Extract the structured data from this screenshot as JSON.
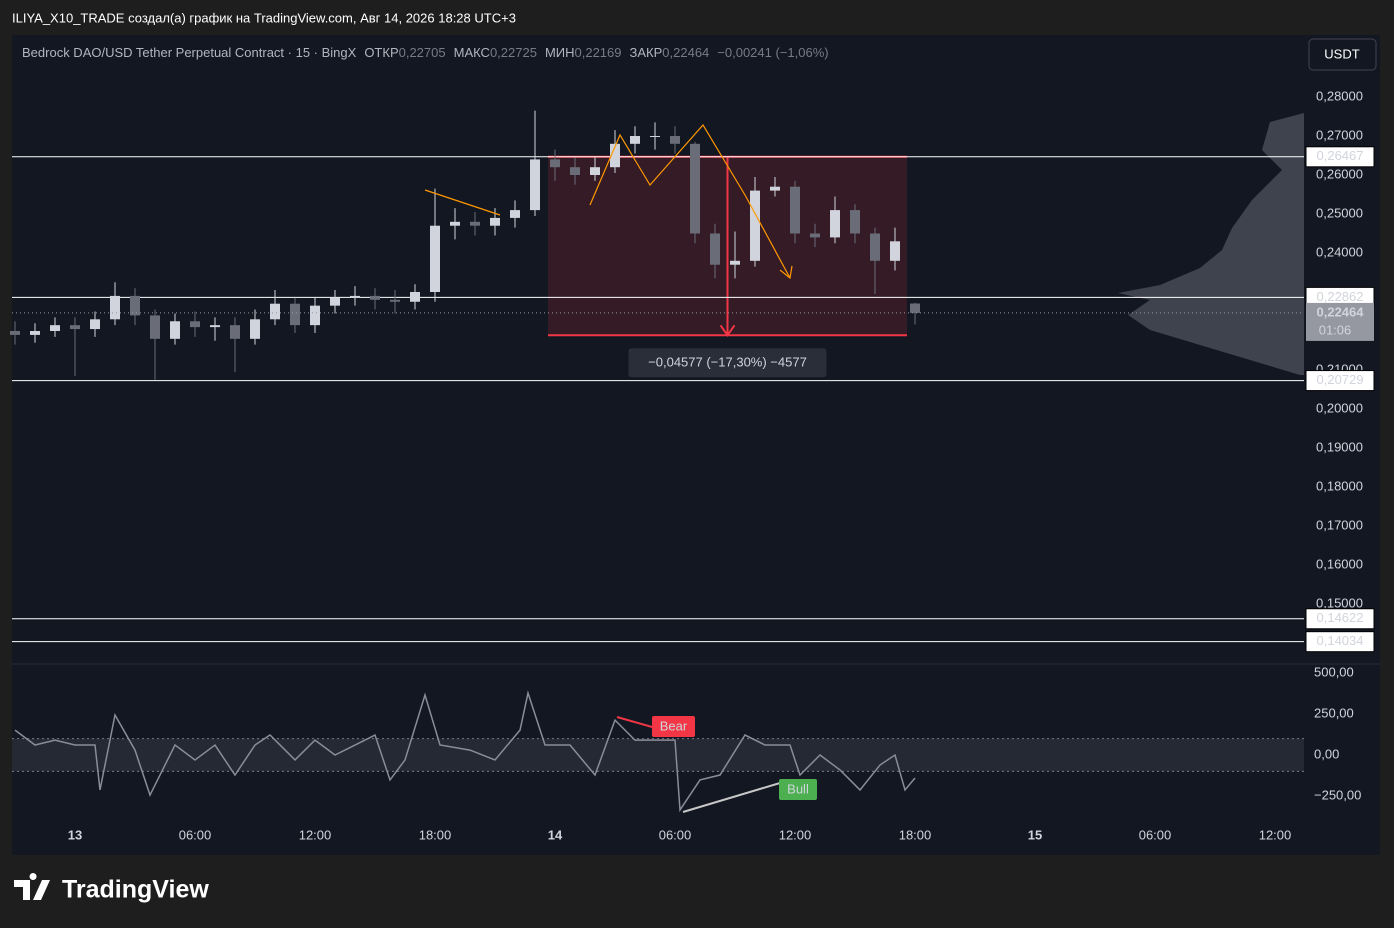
{
  "header": {
    "author": "ILIYA_X10_TRADE создал(а) график на TradingView.com, Авг 14, 2026 18:28 UTC+3"
  },
  "footer": {
    "brand": "TradingView"
  },
  "chart_data": [
    {
      "type": "candlestick",
      "legend": {
        "symbol": "Bedrock DAO/USD Tether Perpetual Contract · 15 · BingX",
        "items": [
          {
            "name": "ОТКР",
            "value": "0,22705"
          },
          {
            "name": "МАКС",
            "value": "0,22725"
          },
          {
            "name": "МИН",
            "value": "0,22169"
          },
          {
            "name": "ЗАКР",
            "value": "0,22464"
          }
        ],
        "change": "−0,00241 (−1,06%)"
      },
      "currency": "USDT",
      "x": [
        -3,
        -2,
        -1,
        0,
        1,
        2,
        3,
        4,
        5,
        6,
        7,
        8,
        9,
        10,
        11,
        12,
        13,
        14,
        15,
        16,
        17,
        18,
        19,
        20,
        21,
        22,
        23,
        24,
        25,
        26,
        27,
        28,
        29,
        30,
        31,
        32,
        33,
        34,
        35,
        36,
        37,
        38,
        39,
        40,
        41,
        42
      ],
      "open": [
        0.22,
        0.219,
        0.22,
        0.2215,
        0.2205,
        0.223,
        0.229,
        0.224,
        0.218,
        0.2225,
        0.221,
        0.2215,
        0.218,
        0.223,
        0.227,
        0.2215,
        0.2265,
        0.2285,
        0.229,
        0.228,
        0.2275,
        0.23,
        0.247,
        0.248,
        0.247,
        0.249,
        0.251,
        0.264,
        0.262,
        0.26,
        0.262,
        0.268,
        0.27,
        0.27,
        0.268,
        0.245,
        0.237,
        0.238,
        0.256,
        0.257,
        0.245,
        0.244,
        0.251,
        0.245,
        0.238,
        0.22705
      ],
      "high": [
        0.2225,
        0.222,
        0.2235,
        0.2235,
        0.225,
        0.2325,
        0.231,
        0.2255,
        0.2245,
        0.225,
        0.2235,
        0.2235,
        0.2255,
        0.2305,
        0.2285,
        0.2285,
        0.2305,
        0.2315,
        0.231,
        0.2305,
        0.232,
        0.2565,
        0.2515,
        0.2505,
        0.2515,
        0.2535,
        0.2765,
        0.2665,
        0.2645,
        0.2645,
        0.2715,
        0.2725,
        0.2735,
        0.2725,
        0.2685,
        0.2475,
        0.2455,
        0.2595,
        0.2595,
        0.2585,
        0.2475,
        0.2545,
        0.2525,
        0.2465,
        0.2465,
        0.22725
      ],
      "low": [
        0.2165,
        0.217,
        0.2185,
        0.2085,
        0.2185,
        0.2215,
        0.2215,
        0.2075,
        0.2165,
        0.2185,
        0.2175,
        0.2095,
        0.2165,
        0.2215,
        0.2195,
        0.2195,
        0.2245,
        0.2265,
        0.2255,
        0.2245,
        0.2255,
        0.2275,
        0.2435,
        0.2445,
        0.2445,
        0.2465,
        0.2495,
        0.2585,
        0.2575,
        0.2585,
        0.2605,
        0.2655,
        0.2665,
        0.2655,
        0.2425,
        0.2335,
        0.2335,
        0.2365,
        0.2545,
        0.2425,
        0.2415,
        0.2425,
        0.2425,
        0.2295,
        0.2355,
        0.22169
      ],
      "close": [
        0.219,
        0.22,
        0.2215,
        0.2205,
        0.223,
        0.229,
        0.224,
        0.218,
        0.2225,
        0.221,
        0.2215,
        0.218,
        0.223,
        0.227,
        0.2215,
        0.2265,
        0.2285,
        0.229,
        0.228,
        0.2275,
        0.23,
        0.247,
        0.248,
        0.247,
        0.249,
        0.251,
        0.264,
        0.262,
        0.26,
        0.262,
        0.268,
        0.27,
        0.27,
        0.268,
        0.245,
        0.237,
        0.238,
        0.256,
        0.257,
        0.245,
        0.244,
        0.251,
        0.245,
        0.238,
        0.243,
        0.22464
      ],
      "up_color": "#d1d4dc",
      "down_color": "#6a6d78",
      "xlim": [
        -3.15,
        61.45
      ],
      "xticks": [
        {
          "value": 0,
          "label": "13"
        },
        {
          "value": 6,
          "label": "06:00"
        },
        {
          "value": 12,
          "label": "12:00"
        },
        {
          "value": 18,
          "label": "18:00"
        },
        {
          "value": 24,
          "label": "14"
        },
        {
          "value": 30,
          "label": "06:00"
        },
        {
          "value": 36,
          "label": "12:00"
        },
        {
          "value": 42,
          "label": "18:00"
        },
        {
          "value": 48,
          "label": "15"
        },
        {
          "value": 54,
          "label": "06:00"
        },
        {
          "value": 60,
          "label": "12:00"
        }
      ],
      "ylim": [
        0.13513,
        0.2959
      ],
      "yticks": [
        {
          "value": 0.15,
          "label": "0,15000"
        },
        {
          "value": 0.16,
          "label": "0,16000"
        },
        {
          "value": 0.17,
          "label": "0,17000"
        },
        {
          "value": 0.18,
          "label": "0,18000"
        },
        {
          "value": 0.19,
          "label": "0,19000"
        },
        {
          "value": 0.2,
          "label": "0,20000"
        },
        {
          "value": 0.21,
          "label": "0,21000"
        },
        {
          "value": 0.24,
          "label": "0,24000"
        },
        {
          "value": 0.25,
          "label": "0,25000"
        },
        {
          "value": 0.26,
          "label": "0,26000"
        },
        {
          "value": 0.27,
          "label": "0,27000"
        },
        {
          "value": 0.28,
          "label": "0,28000"
        }
      ],
      "levels": [
        {
          "value": 0.26467,
          "label": "0,26467"
        },
        {
          "value": 0.22862,
          "label": "0,22862"
        },
        {
          "value": 0.20729,
          "label": "0,20729"
        },
        {
          "value": 0.14622,
          "label": "0,14622"
        },
        {
          "value": 0.14034,
          "label": "0,14034"
        }
      ],
      "last": {
        "value": 0.22464,
        "label": "0,22464",
        "countdown": "01:06"
      },
      "measure": {
        "top": 0.26467,
        "change": -0.04577,
        "xrange": [
          23.65,
          41.6
        ],
        "label": "−0,04577 (−17,30%) −4577",
        "color": "#f23645"
      }
    },
    {
      "type": "line",
      "x": [
        -3,
        -2,
        -1,
        0,
        1,
        1.25,
        2,
        3,
        3.75,
        5,
        6,
        7,
        8,
        9,
        9.75,
        11,
        12,
        13,
        14,
        15,
        15.75,
        16.5,
        17.5,
        18.25,
        19.75,
        21,
        22.25,
        22.65,
        23.5,
        24.75,
        26,
        27,
        28,
        29,
        30,
        30.25,
        31.25,
        32.25,
        33.5,
        34.5,
        35.75,
        36.25,
        37.25,
        38.25,
        39.25,
        40.25,
        41,
        41.5,
        42
      ],
      "values": [
        152,
        61,
        91,
        61,
        61,
        -213,
        244,
        30,
        -244,
        61,
        -30,
        61,
        -122,
        61,
        122,
        -30,
        91,
        0,
        61,
        122,
        -152,
        -30,
        366,
        61,
        30,
        -30,
        152,
        378,
        61,
        61,
        -122,
        213,
        91,
        91,
        91,
        -335,
        -152,
        -122,
        122,
        61,
        61,
        -122,
        0,
        -91,
        -213,
        -61,
        0,
        -213,
        -140
      ],
      "color": "#8a8d96",
      "band": [
        -100,
        100
      ],
      "ylim": [
        -384,
        549
      ],
      "yticks": [
        {
          "value": 500,
          "label": "500,00"
        },
        {
          "value": 250,
          "label": "250,00"
        },
        {
          "value": 0,
          "label": "0,00"
        },
        {
          "value": -250,
          "label": "−250,00"
        }
      ],
      "signals": [
        {
          "label": "Bear",
          "color": "#f23645"
        },
        {
          "label": "Bull",
          "color": "#4caf50"
        }
      ]
    }
  ]
}
